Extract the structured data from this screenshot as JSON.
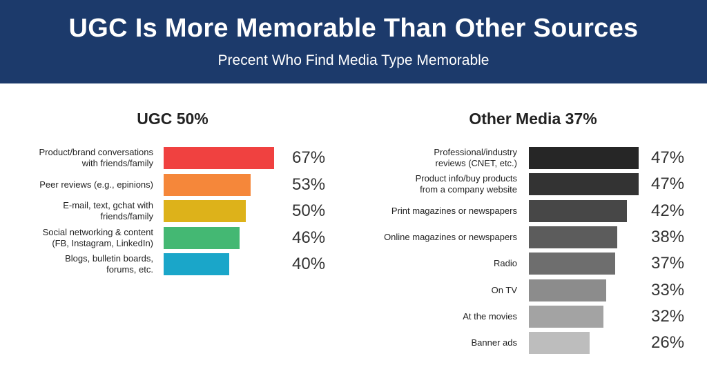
{
  "header": {
    "title": "UGC Is More Memorable Than Other Sources",
    "subtitle": "Precent Who Find Media Type Memorable"
  },
  "chart_data": [
    {
      "type": "bar",
      "orientation": "horizontal",
      "title": "UGC 50%",
      "categories": [
        "Product/brand conversations\nwith friends/family",
        "Peer reviews (e.g., epinions)",
        "E-mail, text, gchat with\nfriends/family",
        "Social networking & content\n(FB, Instagram, LinkedIn)",
        "Blogs, bulletin boards,\nforums, etc."
      ],
      "values": [
        67,
        53,
        50,
        46,
        40
      ],
      "value_labels": [
        "67%",
        "53%",
        "50%",
        "46%",
        "40%"
      ],
      "colors": [
        "#f04140",
        "#f5873a",
        "#ddb21a",
        "#44b873",
        "#1aa6c9"
      ],
      "xlim": [
        0,
        100
      ],
      "grid": false,
      "legend": "none"
    },
    {
      "type": "bar",
      "orientation": "horizontal",
      "title": "Other Media 37%",
      "categories": [
        "Professional/industry\nreviews (CNET, etc.)",
        "Product info/buy products\nfrom a company website",
        "Print magazines or newspapers",
        "Online magazines or newspapers",
        "Radio",
        "On TV",
        "At the movies",
        "Banner ads"
      ],
      "values": [
        47,
        47,
        42,
        38,
        37,
        33,
        32,
        26
      ],
      "value_labels": [
        "47%",
        "47%",
        "42%",
        "38%",
        "37%",
        "33%",
        "32%",
        "26%"
      ],
      "colors": [
        "#262626",
        "#333333",
        "#474747",
        "#5c5c5c",
        "#6e6e6e",
        "#8c8c8c",
        "#a3a3a3",
        "#bdbdbd"
      ],
      "xlim": [
        0,
        100
      ],
      "grid": false,
      "legend": "none"
    }
  ]
}
